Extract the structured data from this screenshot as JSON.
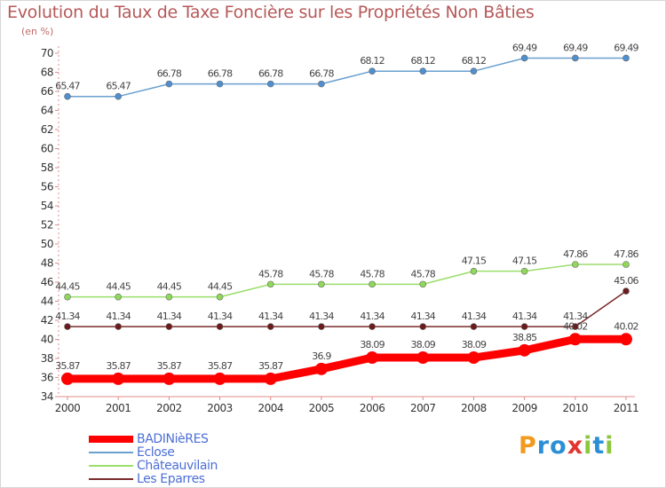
{
  "header": {
    "title": "Evolution du Taux de Taxe Foncière sur les Propriétés Non Bâties",
    "unit": "(en %)"
  },
  "chart_data": {
    "type": "line",
    "title": "Evolution du Taux de Taxe Foncière sur les Propriétés Non Bâties",
    "ylabel": "(en %)",
    "xlabel": "",
    "categories": [
      "2000",
      "2001",
      "2002",
      "2003",
      "2004",
      "2005",
      "2006",
      "2007",
      "2008",
      "2009",
      "2010",
      "2011"
    ],
    "ylim": [
      34,
      70
    ],
    "ytick_step": 2,
    "yticks": [
      "34",
      "36",
      "38",
      "40",
      "42",
      "44",
      "46",
      "48",
      "50",
      "52",
      "54",
      "56",
      "58",
      "60",
      "62",
      "64",
      "66",
      "68",
      "70"
    ],
    "grid": false,
    "legend_position": "bottom-left",
    "series": [
      {
        "name": "BADINièRES",
        "color": "#ff0000",
        "marker_fill": "#ff0000",
        "values": [
          35.87,
          35.87,
          35.87,
          35.87,
          35.87,
          36.9,
          38.09,
          38.09,
          38.09,
          38.85,
          40.02,
          40.02
        ],
        "labels": [
          "35.87",
          "35.87",
          "35.87",
          "35.87",
          "35.87",
          "36.9",
          "38.09",
          "38.09",
          "38.09",
          "38.85",
          "40.02",
          "40.02"
        ],
        "bold": true
      },
      {
        "name": "Eclose",
        "color": "#6a9fd0",
        "marker_fill": "#4f8fcf",
        "values": [
          65.47,
          65.47,
          66.78,
          66.78,
          66.78,
          66.78,
          68.12,
          68.12,
          68.12,
          69.49,
          69.49,
          69.49
        ],
        "labels": [
          "65.47",
          "65.47",
          "66.78",
          "66.78",
          "66.78",
          "66.78",
          "68.12",
          "68.12",
          "68.12",
          "69.49",
          "69.49",
          "69.49"
        ],
        "bold": false
      },
      {
        "name": "Châteauvilain",
        "color": "#9bde6b",
        "marker_fill": "#8fd85a",
        "values": [
          44.45,
          44.45,
          44.45,
          44.45,
          45.78,
          45.78,
          45.78,
          45.78,
          47.15,
          47.15,
          47.86,
          47.86
        ],
        "labels": [
          "44.45",
          "44.45",
          "44.45",
          "44.45",
          "45.78",
          "45.78",
          "45.78",
          "45.78",
          "47.15",
          "47.15",
          "47.86",
          "47.86"
        ],
        "bold": false
      },
      {
        "name": "Les Eparres",
        "color": "#7b2a2a",
        "marker_fill": "#6b1b1b",
        "values": [
          41.34,
          41.34,
          41.34,
          41.34,
          41.34,
          41.34,
          41.34,
          41.34,
          41.34,
          41.34,
          41.34,
          45.06
        ],
        "labels": [
          "41.34",
          "41.34",
          "41.34",
          "41.34",
          "41.34",
          "41.34",
          "41.34",
          "41.34",
          "41.34",
          "41.34",
          "41.34",
          "45.06"
        ],
        "bold": false
      }
    ]
  },
  "logo": {
    "letters": [
      "P",
      "r",
      "o",
      "x",
      "i",
      "t",
      "i"
    ],
    "colors": [
      "#f29a1f",
      "#2b8fd6",
      "#2b8fd6",
      "#e3342f",
      "#8dc63f",
      "#2b8fd6",
      "#8dc63f"
    ]
  }
}
